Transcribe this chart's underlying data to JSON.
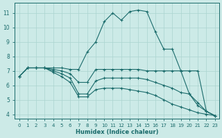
{
  "xlabel": "Humidex (Indice chaleur)",
  "bg_color": "#cceae7",
  "grid_color": "#aad4d0",
  "line_color": "#1a6b6b",
  "xlim": [
    -0.5,
    23.5
  ],
  "ylim": [
    3.7,
    11.7
  ],
  "yticks": [
    4,
    5,
    6,
    7,
    8,
    9,
    10,
    11
  ],
  "xticks": [
    0,
    1,
    2,
    3,
    4,
    5,
    6,
    7,
    8,
    9,
    10,
    11,
    12,
    13,
    14,
    15,
    16,
    17,
    18,
    19,
    20,
    21,
    22,
    23
  ],
  "lines": [
    {
      "x": [
        0,
        1,
        2,
        3,
        4,
        5,
        6,
        7,
        8,
        9,
        10,
        11,
        12,
        13,
        14,
        15,
        16,
        17,
        18,
        19,
        20,
        21,
        22,
        23
      ],
      "y": [
        6.6,
        7.2,
        7.2,
        7.2,
        7.2,
        7.2,
        7.1,
        7.1,
        8.3,
        9.0,
        10.4,
        11.0,
        10.5,
        11.1,
        11.2,
        11.1,
        9.7,
        8.5,
        8.5,
        7.0,
        5.4,
        4.6,
        4.2,
        3.9
      ]
    },
    {
      "x": [
        0,
        1,
        2,
        3,
        4,
        5,
        6,
        7,
        8,
        9,
        10,
        11,
        12,
        13,
        14,
        15,
        16,
        17,
        18,
        19,
        20,
        21,
        22,
        23
      ],
      "y": [
        6.6,
        7.2,
        7.2,
        7.2,
        7.1,
        7.0,
        6.8,
        6.2,
        6.2,
        7.1,
        7.1,
        7.1,
        7.1,
        7.1,
        7.1,
        7.0,
        7.0,
        7.0,
        7.0,
        7.0,
        7.0,
        7.0,
        4.2,
        3.9
      ]
    },
    {
      "x": [
        0,
        1,
        2,
        3,
        4,
        5,
        6,
        7,
        8,
        9,
        10,
        11,
        12,
        13,
        14,
        15,
        16,
        17,
        18,
        19,
        20,
        21,
        22,
        23
      ],
      "y": [
        6.6,
        7.2,
        7.2,
        7.2,
        7.0,
        6.8,
        6.5,
        5.4,
        5.4,
        6.3,
        6.5,
        6.5,
        6.5,
        6.5,
        6.5,
        6.4,
        6.2,
        6.0,
        5.8,
        5.5,
        5.4,
        4.8,
        4.2,
        3.9
      ]
    },
    {
      "x": [
        0,
        1,
        2,
        3,
        4,
        5,
        6,
        7,
        8,
        9,
        10,
        11,
        12,
        13,
        14,
        15,
        16,
        17,
        18,
        19,
        20,
        21,
        22,
        23
      ],
      "y": [
        6.6,
        7.2,
        7.2,
        7.2,
        6.9,
        6.6,
        6.2,
        5.2,
        5.2,
        5.7,
        5.8,
        5.8,
        5.8,
        5.7,
        5.6,
        5.5,
        5.3,
        5.0,
        4.7,
        4.5,
        4.3,
        4.1,
        4.0,
        3.9
      ]
    }
  ]
}
